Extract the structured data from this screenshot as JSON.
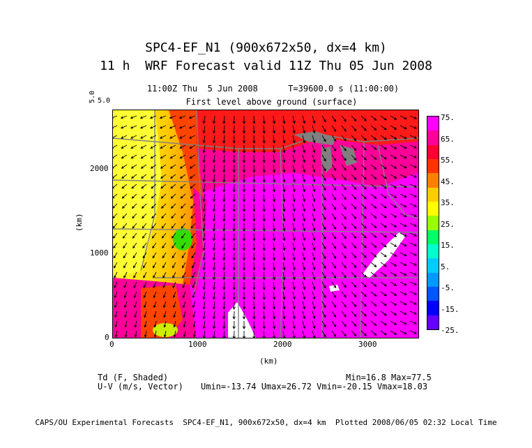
{
  "header": {
    "title_line1": "SPC4-EF_N1 (900x672x50, dx=4 km)",
    "title_line2": "11 h  WRF Forecast valid 11Z Thu 05 Jun 2008",
    "valid_line": "11:00Z Thu  5 Jun 2008      T=39600.0 s (11:00:00)",
    "level_line": "First level above ground (surface)",
    "vector_ref_a": "5.0",
    "vector_ref_b": "5.0"
  },
  "colorbar": {
    "labels": [
      "75.",
      "65.",
      "55.",
      "45.",
      "35.",
      "25.",
      "15.",
      "5.",
      "-5.",
      "-15.",
      "-25."
    ],
    "colors": [
      "#ff00ff",
      "#ff0099",
      "#ff0033",
      "#ff3300",
      "#ff8000",
      "#ffcc00",
      "#ffff00",
      "#99ff00",
      "#00ff66",
      "#00ffcc",
      "#00ccff",
      "#0099ff",
      "#0055ff",
      "#0000ff",
      "#6600ff"
    ]
  },
  "axes": {
    "x_label": "(km)",
    "y_label": "(km)",
    "x_ticks": [
      "0",
      "1000",
      "2000",
      "3000"
    ],
    "y_ticks": [
      "0",
      "1000",
      "2000"
    ]
  },
  "legend": {
    "field1": "Td (F, Shaded)",
    "field2": "U-V (m/s, Vector)",
    "range1": "Min=16.8 Max=77.5",
    "range2": "Umin=-13.74 Umax=26.72 Vmin=-20.15 Vmax=18.03"
  },
  "footer": {
    "text": "CAPS/OU Experimental Forecasts  SPC4-EF_N1, 900x672x50, dx=4 km  Plotted 2008/06/05 02:32 Local Time"
  },
  "map_colors": {
    "magenta": "#ff00ff",
    "pink": "#ff0099",
    "red": "#ff1a1a",
    "orange_red": "#ff4400",
    "orange": "#ff8800",
    "yellow_orange": "#ffcc00",
    "yellow": "#ffff33",
    "green": "#33dd00",
    "border": "#808080"
  }
}
